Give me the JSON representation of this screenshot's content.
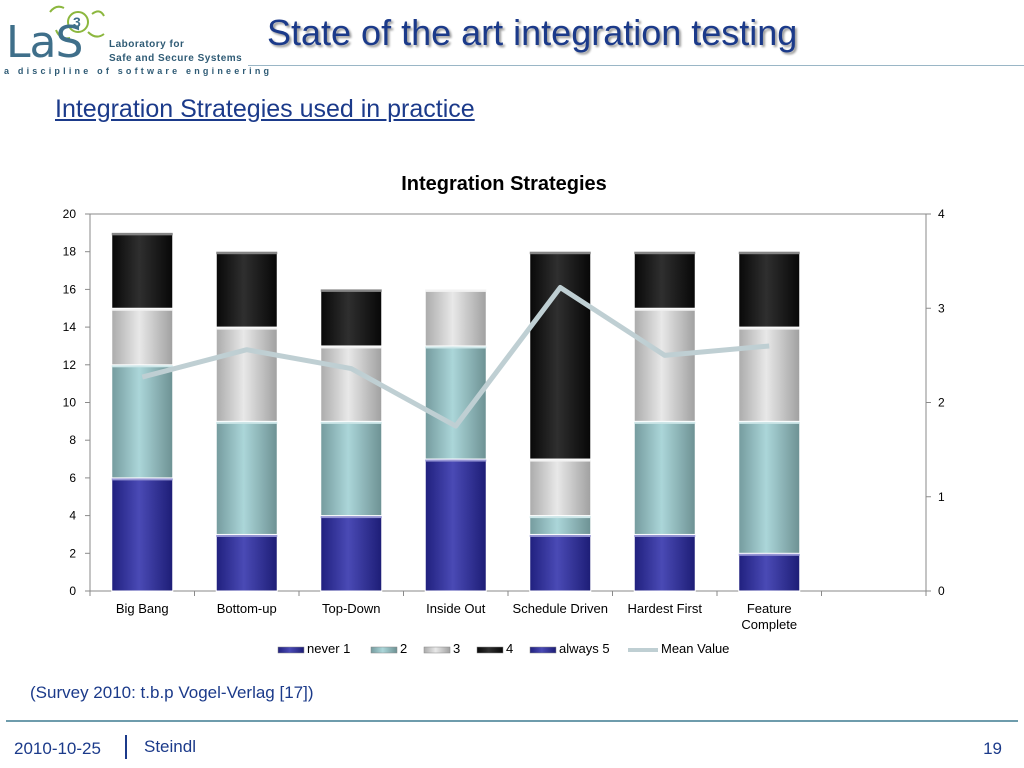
{
  "header": {
    "logo_text": "LaS",
    "logo_mark": "3",
    "logo_line1": "Laboratory for",
    "logo_line2": "Safe and Secure Systems",
    "logo_tagline": "a discipline of software engineering",
    "title": "State of the art integration testing"
  },
  "subtitle": "Integration Strategies used in practice",
  "caption": "(Survey 2010: t.b.p Vogel-Verlag [17])",
  "footer": {
    "date": "2010-10-25",
    "author": "Steindl",
    "page": "19"
  },
  "chart_data": {
    "type": "bar",
    "stacked": true,
    "title": "Integration Strategies",
    "categories": [
      "Big Bang",
      "Bottom-up",
      "Top-Down",
      "Inside Out",
      "Schedule Driven",
      "Hardest First",
      "Feature Complete"
    ],
    "series": [
      {
        "name": "never 1",
        "values": [
          6,
          3,
          4,
          7,
          3,
          3,
          2
        ],
        "color": "#2a2aa8"
      },
      {
        "name": "2",
        "values": [
          6,
          6,
          5,
          6,
          1,
          6,
          7
        ],
        "color": "#9ccfd2"
      },
      {
        "name": "3",
        "values": [
          3,
          5,
          4,
          3,
          3,
          6,
          5
        ],
        "color": "#e4e4e4"
      },
      {
        "name": "4",
        "values": [
          4,
          4,
          3,
          0,
          11,
          3,
          4
        ],
        "color": "#0a0a0a"
      },
      {
        "name": "always 5",
        "values": [
          0,
          0,
          0,
          0,
          0,
          0,
          0
        ],
        "color": "#2a2aa8"
      }
    ],
    "line_series": {
      "name": "Mean Value",
      "values": [
        2.27,
        2.56,
        2.36,
        1.75,
        3.22,
        2.5,
        2.6
      ],
      "color": "#bfcfd3",
      "axis": "right"
    },
    "ylim": [
      0,
      20
    ],
    "yticks": [
      0,
      2,
      4,
      6,
      8,
      10,
      12,
      14,
      16,
      18,
      20
    ],
    "y2lim": [
      0,
      4
    ],
    "y2ticks": [
      0,
      1,
      2,
      3,
      4
    ],
    "legend": "bottom",
    "grid": false
  }
}
